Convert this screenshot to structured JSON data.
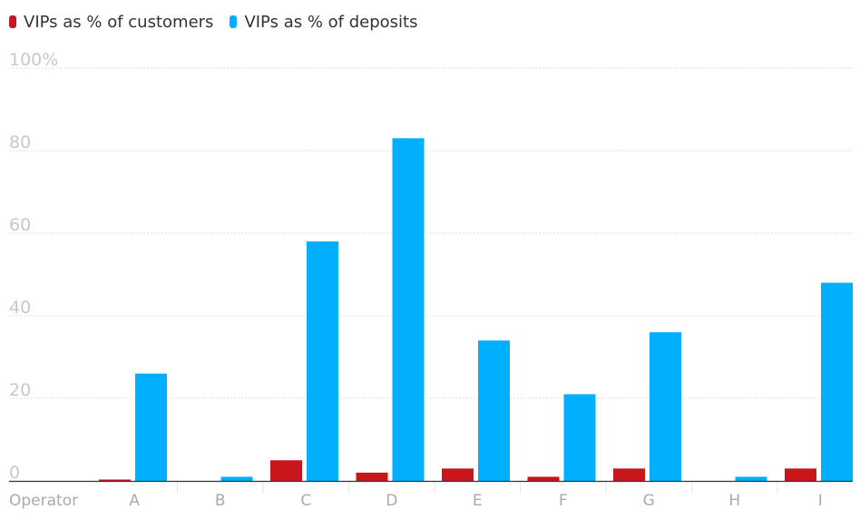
{
  "colors": {
    "customers": "#c8161d",
    "deposits": "#00b0ff",
    "grid": "#dcdcdc",
    "axis": "#333333",
    "separator": "#e6e6e6"
  },
  "chart_data": {
    "type": "bar",
    "x_axis_label": "Operator",
    "categories": [
      "A",
      "B",
      "C",
      "D",
      "E",
      "F",
      "G",
      "H",
      "I"
    ],
    "series": [
      {
        "name": "VIPs as % of customers",
        "color": "#c8161d",
        "values": [
          0.3,
          0,
          5,
          2,
          3,
          1,
          3,
          0,
          3
        ]
      },
      {
        "name": "VIPs as % of deposits",
        "color": "#00b0ff",
        "values": [
          26,
          1,
          58,
          83,
          34,
          21,
          36,
          1,
          48
        ]
      }
    ],
    "ylim": [
      0,
      100
    ],
    "yticks": [
      0,
      20,
      40,
      60,
      80,
      100
    ],
    "ytick_labels": [
      "0",
      "20",
      "40",
      "60",
      "80",
      "100%"
    ],
    "grid": true,
    "legend_position": "top-left"
  }
}
